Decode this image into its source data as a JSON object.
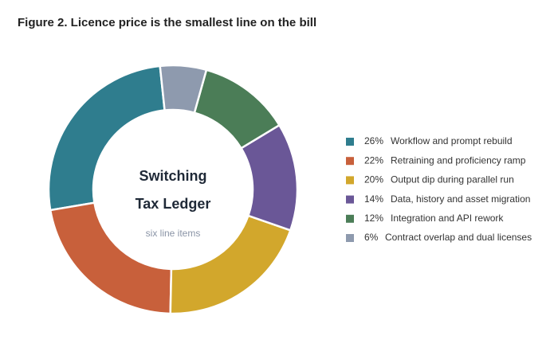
{
  "chart_data": {
    "type": "donut",
    "title": "Figure 2. Licence price is the smallest line on the bill",
    "center_title": [
      "Switching",
      "Tax Ledger"
    ],
    "center_subtitle": "six line items",
    "categories": [
      "Workflow and prompt rebuild",
      "Retraining and proficiency ramp",
      "Output dip during parallel run",
      "Data, history and asset migration",
      "Integration and API rework",
      "Contract overlap and dual licenses"
    ],
    "values": [
      26,
      22,
      20,
      14,
      12,
      6
    ],
    "value_labels": [
      "26%",
      "22%",
      "20%",
      "14%",
      "12%",
      "6%"
    ],
    "colors": [
      "#2f7d8e",
      "#c8603b",
      "#d2a72c",
      "#6a5797",
      "#4b7d57",
      "#8e9aae"
    ],
    "legend": "right"
  }
}
